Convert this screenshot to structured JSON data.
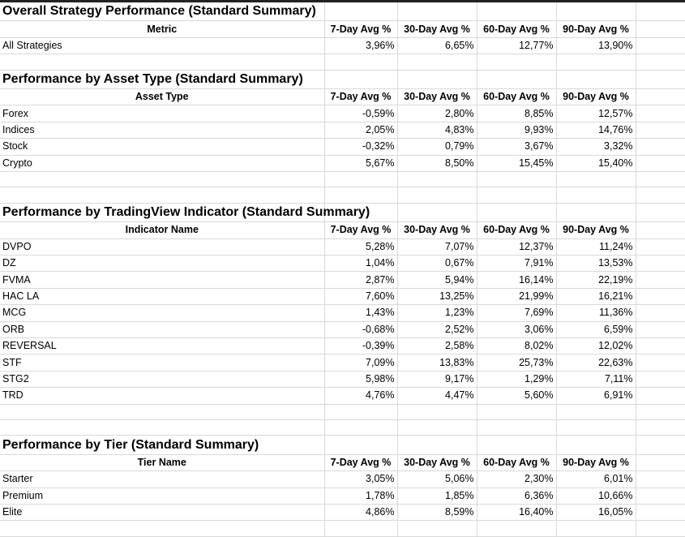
{
  "sections": [
    {
      "title": "Overall Strategy Performance (Standard Summary)",
      "label_header": "Metric",
      "columns": [
        "7-Day Avg %",
        "30-Day Avg %",
        "60-Day Avg %",
        "90-Day Avg %"
      ],
      "rows": [
        {
          "label": "All Strategies",
          "values": [
            "3,96%",
            "6,65%",
            "12,77%",
            "13,90%"
          ]
        }
      ]
    },
    {
      "title": "Performance by Asset Type (Standard Summary)",
      "label_header": "Asset Type",
      "columns": [
        "7-Day Avg %",
        "30-Day Avg %",
        "60-Day Avg %",
        "90-Day Avg %"
      ],
      "rows": [
        {
          "label": "Forex",
          "values": [
            "-0,59%",
            "2,80%",
            "8,85%",
            "12,57%"
          ]
        },
        {
          "label": "Indices",
          "values": [
            "2,05%",
            "4,83%",
            "9,93%",
            "14,76%"
          ]
        },
        {
          "label": "Stock",
          "values": [
            "-0,32%",
            "0,79%",
            "3,67%",
            "3,32%"
          ]
        },
        {
          "label": "Crypto",
          "values": [
            "5,67%",
            "8,50%",
            "15,45%",
            "15,40%"
          ]
        }
      ]
    },
    {
      "title": "Performance by TradingView Indicator (Standard Summary)",
      "label_header": "Indicator Name",
      "columns": [
        "7-Day Avg %",
        "30-Day Avg %",
        "60-Day Avg %",
        "90-Day Avg %"
      ],
      "rows": [
        {
          "label": "DVPO",
          "values": [
            "5,28%",
            "7,07%",
            "12,37%",
            "11,24%"
          ]
        },
        {
          "label": "DZ",
          "values": [
            "1,04%",
            "0,67%",
            "7,91%",
            "13,53%"
          ]
        },
        {
          "label": "FVMA",
          "values": [
            "2,87%",
            "5,94%",
            "16,14%",
            "22,19%"
          ]
        },
        {
          "label": "HAC LA",
          "values": [
            "7,60%",
            "13,25%",
            "21,99%",
            "16,21%"
          ]
        },
        {
          "label": "MCG",
          "values": [
            "1,43%",
            "1,23%",
            "7,69%",
            "11,36%"
          ]
        },
        {
          "label": "ORB",
          "values": [
            "-0,68%",
            "2,52%",
            "3,06%",
            "6,59%"
          ]
        },
        {
          "label": "REVERSAL",
          "values": [
            "-0,39%",
            "2,58%",
            "8,02%",
            "12,02%"
          ]
        },
        {
          "label": "STF",
          "values": [
            "7,09%",
            "13,83%",
            "25,73%",
            "22,63%"
          ]
        },
        {
          "label": "STG2",
          "values": [
            "5,98%",
            "9,17%",
            "1,29%",
            "7,11%"
          ]
        },
        {
          "label": "TRD",
          "values": [
            "4,76%",
            "4,47%",
            "5,60%",
            "6,91%"
          ]
        }
      ]
    },
    {
      "title": "Performance by Tier (Standard Summary)",
      "label_header": "Tier Name",
      "columns": [
        "7-Day Avg %",
        "30-Day Avg %",
        "60-Day Avg %",
        "90-Day Avg %"
      ],
      "rows": [
        {
          "label": "Starter",
          "values": [
            "3,05%",
            "5,06%",
            "2,30%",
            "6,01%"
          ]
        },
        {
          "label": "Premium",
          "values": [
            "1,78%",
            "1,85%",
            "6,36%",
            "10,66%"
          ]
        },
        {
          "label": "Elite",
          "values": [
            "4,86%",
            "8,59%",
            "16,40%",
            "16,05%"
          ]
        }
      ]
    }
  ],
  "spacer_rows_after_section": [
    1,
    2,
    2,
    1
  ]
}
